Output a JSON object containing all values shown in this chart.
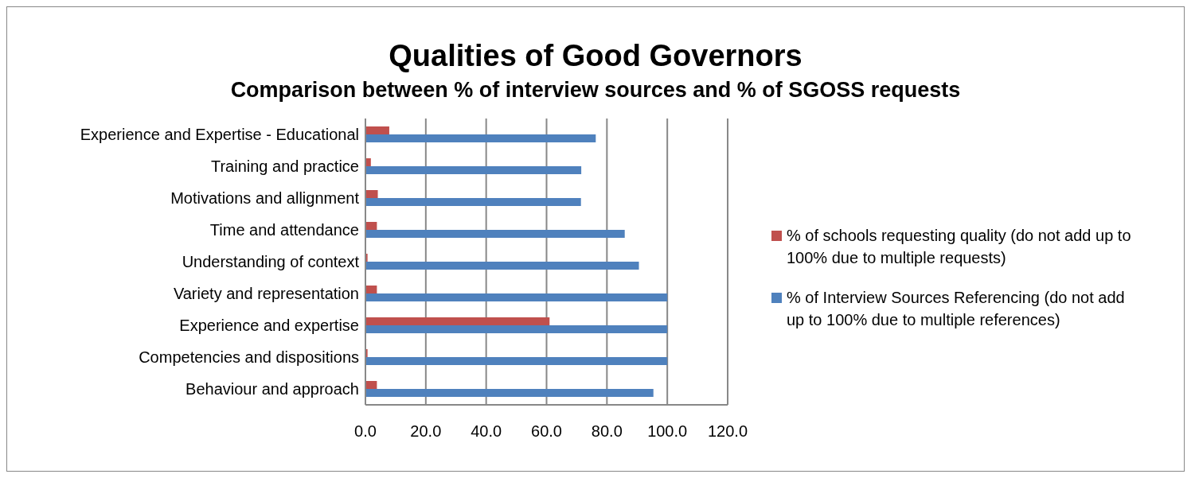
{
  "chart_data": {
    "type": "bar",
    "orientation": "horizontal",
    "title": "Qualities of Good Governors",
    "subtitle": "Comparison between % of interview sources and % of SGOSS requests",
    "categories": [
      "Experience and Expertise - Educational",
      "Training and practice",
      "Motivations and allignment",
      "Time and attendance",
      "Understanding of context",
      "Variety and representation",
      "Experience and expertise",
      "Competencies and dispositions",
      "Behaviour and approach"
    ],
    "series": [
      {
        "name": "% of schools requesting quality (do not add up to 100% due to multiple requests)",
        "color": "#c0504d",
        "values": [
          7.9,
          1.8,
          4.1,
          3.8,
          0.7,
          3.8,
          61.0,
          0.7,
          3.8
        ]
      },
      {
        "name": "% of Interview Sources Referencing (do not add up to 100% due to multiple references)",
        "color": "#4f81bd",
        "values": [
          76.3,
          71.5,
          71.4,
          85.9,
          90.6,
          100,
          100,
          100,
          95.4
        ]
      }
    ],
    "xlim": [
      0,
      120
    ],
    "xticks": [
      {
        "value": 0,
        "label": "0.0"
      },
      {
        "value": 20,
        "label": "20.0"
      },
      {
        "value": 40,
        "label": "40.0"
      },
      {
        "value": 60,
        "label": "60.0"
      },
      {
        "value": 80,
        "label": "80.0"
      },
      {
        "value": 100,
        "label": "100.0"
      },
      {
        "value": 120,
        "label": "120.0"
      }
    ],
    "grid": "x",
    "legend": "right"
  }
}
